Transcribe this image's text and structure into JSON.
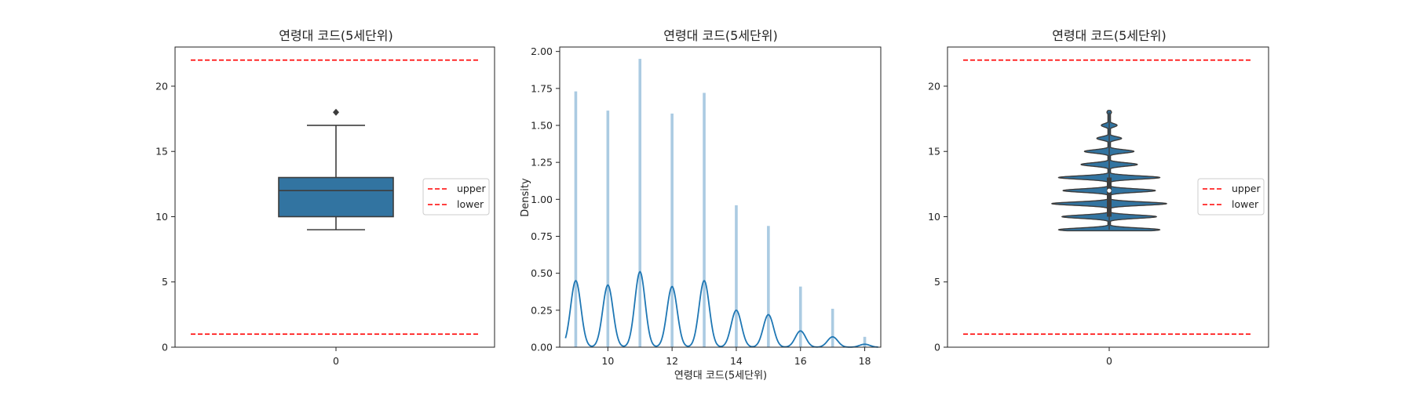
{
  "chart_data": [
    {
      "type": "box",
      "title": "연령대 코드(5세단위)",
      "xticklabels": [
        "0"
      ],
      "ylim": [
        0,
        23
      ],
      "yticks": [
        0,
        5,
        10,
        15,
        20
      ],
      "box": {
        "whisker_low": 9,
        "q1": 10,
        "median": 12,
        "q3": 13,
        "whisker_high": 17,
        "outliers": [
          18
        ]
      },
      "reference_lines": {
        "upper": 22,
        "lower": 1
      },
      "legend": {
        "position": "center-right",
        "entries": [
          "upper",
          "lower"
        ]
      },
      "colors": {
        "box": "#3274a1",
        "lines": "#ff0000"
      }
    },
    {
      "type": "histogram",
      "title": "연령대 코드(5세단위)",
      "xlabel": "연령대 코드(5세단위)",
      "ylabel": "Density",
      "xlim": [
        8.5,
        18.5
      ],
      "ylim": [
        0,
        2.03
      ],
      "xticks": [
        10,
        12,
        14,
        16,
        18
      ],
      "yticks": [
        "0.00",
        "0.25",
        "0.50",
        "0.75",
        "1.00",
        "1.25",
        "1.50",
        "1.75",
        "2.00"
      ],
      "bars": [
        {
          "x": 9,
          "density": 1.73
        },
        {
          "x": 10,
          "density": 1.6
        },
        {
          "x": 11,
          "density": 1.95
        },
        {
          "x": 12,
          "density": 1.58
        },
        {
          "x": 13,
          "density": 1.72
        },
        {
          "x": 14,
          "density": 0.96
        },
        {
          "x": 15,
          "density": 0.82
        },
        {
          "x": 16,
          "density": 0.41
        },
        {
          "x": 17,
          "density": 0.26
        },
        {
          "x": 18,
          "density": 0.07
        }
      ],
      "kde": [
        {
          "x": 9,
          "y": 0.45
        },
        {
          "x": 10,
          "y": 0.42
        },
        {
          "x": 11,
          "y": 0.51
        },
        {
          "x": 12,
          "y": 0.41
        },
        {
          "x": 13,
          "y": 0.45
        },
        {
          "x": 14,
          "y": 0.25
        },
        {
          "x": 15,
          "y": 0.22
        },
        {
          "x": 16,
          "y": 0.11
        },
        {
          "x": 17,
          "y": 0.07
        },
        {
          "x": 18,
          "y": 0.02
        }
      ],
      "colors": {
        "bars": "#a6c8e0",
        "kde": "#1f77b4"
      }
    },
    {
      "type": "violin",
      "title": "연령대 코드(5세단위)",
      "xticklabels": [
        "0"
      ],
      "ylim": [
        0,
        23
      ],
      "yticks": [
        0,
        5,
        10,
        15,
        20
      ],
      "violin": {
        "values": [
          9,
          10,
          11,
          12,
          13,
          14,
          15,
          16,
          17,
          18
        ],
        "densities": [
          0.45,
          0.42,
          0.51,
          0.41,
          0.45,
          0.25,
          0.22,
          0.11,
          0.07,
          0.02
        ],
        "median": 12,
        "q1": 10,
        "q3": 13
      },
      "reference_lines": {
        "upper": 22,
        "lower": 1
      },
      "legend": {
        "position": "center-right",
        "entries": [
          "upper",
          "lower"
        ]
      },
      "colors": {
        "violin": "#3274a1",
        "lines": "#ff0000"
      }
    }
  ]
}
